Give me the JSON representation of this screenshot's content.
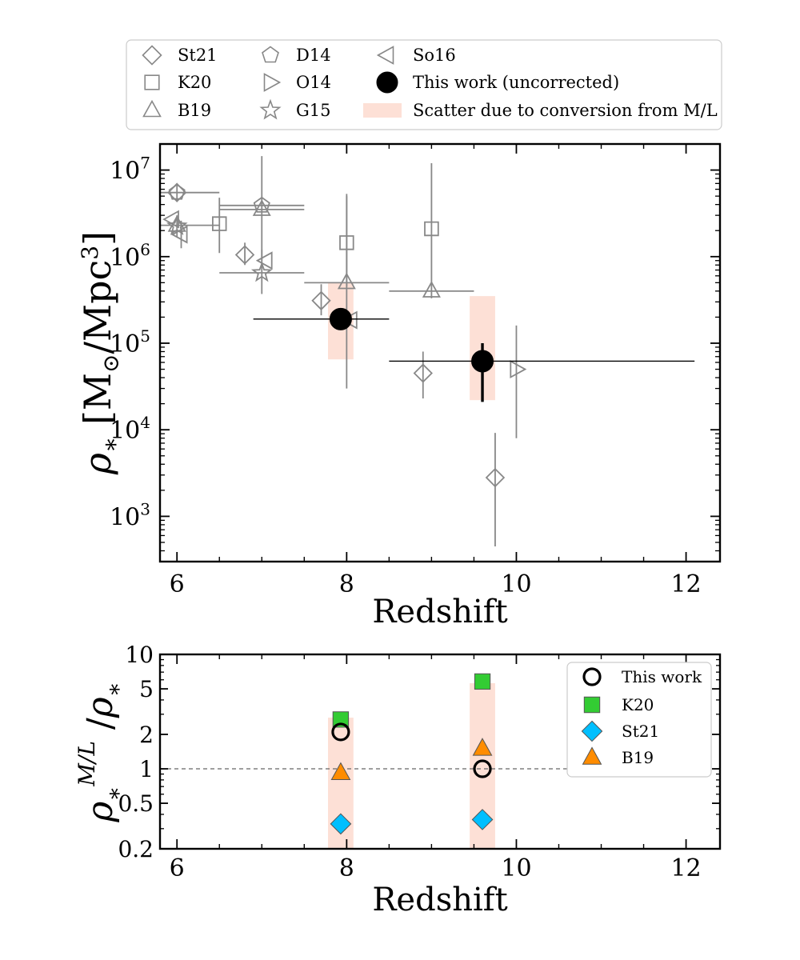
{
  "chart_data": [
    {
      "type": "scatter",
      "panel": "top",
      "xlabel": "Redshift",
      "ylabel": "ρ* [M⊙/Mpc³]",
      "yscale": "log",
      "xlim": [
        5.8,
        12.4
      ],
      "ylim": [
        300,
        20000000
      ],
      "xticks": [
        6,
        8,
        10,
        12
      ],
      "xtick_labels": [
        "6",
        "8",
        "10",
        "12"
      ],
      "yticks": [
        1000,
        10000,
        100000,
        1000000,
        10000000
      ],
      "ytick_labels": [
        {
          "base": "10",
          "exp": "3"
        },
        {
          "base": "10",
          "exp": "4"
        },
        {
          "base": "10",
          "exp": "5"
        },
        {
          "base": "10",
          "exp": "6"
        },
        {
          "base": "10",
          "exp": "7"
        }
      ],
      "legend_position": "above plot",
      "legend": [
        {
          "label": "St21",
          "marker": "diamond",
          "style": "open-gray"
        },
        {
          "label": "K20",
          "marker": "square",
          "style": "open-gray"
        },
        {
          "label": "B19",
          "marker": "triangle-up",
          "style": "open-gray"
        },
        {
          "label": "D14",
          "marker": "pentagon",
          "style": "open-gray"
        },
        {
          "label": "O14",
          "marker": "triangle-right",
          "style": "open-gray"
        },
        {
          "label": "G15",
          "marker": "star",
          "style": "open-gray"
        },
        {
          "label": "So16",
          "marker": "triangle-left",
          "style": "open-gray"
        },
        {
          "label": "This work (uncorrected)",
          "marker": "circle",
          "style": "filled-black"
        },
        {
          "label": "Scatter due to conversion from M/L",
          "marker": "band",
          "style": "salmon"
        }
      ],
      "series": [
        {
          "name": "St21",
          "marker": "diamond",
          "points": [
            {
              "x": 6.0,
              "y": 5500000,
              "ylo": 4300000,
              "yhi": 7000000
            },
            {
              "x": 6.8,
              "y": 1050000,
              "ylo": 800000,
              "yhi": 1450000
            },
            {
              "x": 7.7,
              "y": 310000,
              "ylo": 210000,
              "yhi": 480000
            },
            {
              "x": 8.9,
              "y": 45000,
              "ylo": 23000,
              "yhi": 80000
            },
            {
              "x": 9.75,
              "y": 2800,
              "ylo": 450,
              "yhi": 9200
            }
          ]
        },
        {
          "name": "K20",
          "marker": "square",
          "points": [
            {
              "x": 6.5,
              "y": 2400000,
              "ylo": 1100000,
              "yhi": 4800000
            },
            {
              "x": 8.0,
              "y": 1450000,
              "ylo": 450000,
              "yhi": 5000000
            },
            {
              "x": 9.0,
              "y": 2100000,
              "ylo": 330000,
              "yhi": 12000000
            }
          ]
        },
        {
          "name": "B19",
          "marker": "triangle-up",
          "points": [
            {
              "x": 6.0,
              "y": 2300000,
              "xlo": 5.8,
              "xhi": 6.5
            },
            {
              "x": 7.0,
              "y": 3500000,
              "xlo": 6.5,
              "xhi": 7.5,
              "ylo": 900000,
              "yhi": 14500000
            },
            {
              "x": 8.0,
              "y": 500000,
              "xlo": 7.5,
              "xhi": 8.5,
              "ylo": 30000,
              "yhi": 5300000
            },
            {
              "x": 9.0,
              "y": 400000,
              "xlo": 8.5,
              "xhi": 9.5
            }
          ]
        },
        {
          "name": "D14",
          "marker": "pentagon",
          "points": [
            {
              "x": 6.0,
              "y": 5500000,
              "xlo": 5.8,
              "xhi": 6.5
            },
            {
              "x": 7.0,
              "y": 3900000,
              "xlo": 6.5,
              "xhi": 7.5
            }
          ]
        },
        {
          "name": "O14",
          "marker": "triangle-right",
          "points": [
            {
              "x": 10.0,
              "y": 50000,
              "ylo": 8000,
              "yhi": 160000
            }
          ]
        },
        {
          "name": "G15",
          "marker": "star",
          "points": [
            {
              "x": 6.0,
              "y": 2250000,
              "ylo": 1700000,
              "yhi": 3000000
            },
            {
              "x": 7.0,
              "y": 650000,
              "xlo": 6.5,
              "xhi": 7.5,
              "ylo": 370000,
              "yhi": 1200000
            }
          ]
        },
        {
          "name": "So16",
          "marker": "triangle-left",
          "points": [
            {
              "x": 5.95,
              "y": 2700000
            },
            {
              "x": 6.05,
              "y": 1800000,
              "ylo": 1250000,
              "yhi": 2600000
            },
            {
              "x": 7.05,
              "y": 900000
            },
            {
              "x": 8.05,
              "y": 185000
            }
          ]
        },
        {
          "name": "This work (uncorrected)",
          "marker": "circle",
          "points": [
            {
              "x": 7.93,
              "y": 190000,
              "xlo": 6.9,
              "xhi": 8.5
            },
            {
              "x": 9.6,
              "y": 62000,
              "xlo": 8.5,
              "xhi": 12.1,
              "ylo": 21000,
              "yhi": 100000
            }
          ]
        }
      ],
      "bands": [
        {
          "name": "Scatter due to conversion from M/L",
          "xlo": 7.78,
          "xhi": 8.08,
          "ylo": 65000,
          "yhi": 500000
        },
        {
          "name": "Scatter due to conversion from M/L",
          "xlo": 9.45,
          "xhi": 9.75,
          "ylo": 22000,
          "yhi": 350000
        }
      ]
    },
    {
      "type": "scatter",
      "panel": "bottom",
      "xlabel": "Redshift",
      "ylabel": "ρ*^{M/L} / ρ*",
      "yscale": "log",
      "xlim": [
        5.8,
        12.4
      ],
      "ylim": [
        0.2,
        10
      ],
      "xticks": [
        6,
        8,
        10,
        12
      ],
      "xtick_labels": [
        "6",
        "8",
        "10",
        "12"
      ],
      "yticks": [
        0.2,
        0.5,
        1,
        2,
        5,
        10
      ],
      "ytick_labels": [
        "0.2",
        "0.5",
        "1",
        "2",
        "5",
        "10"
      ],
      "reference_line": 1,
      "legend_position": "top-right",
      "legend": [
        {
          "label": "This work",
          "marker": "circle-open",
          "color": "#000000"
        },
        {
          "label": "K20",
          "marker": "square",
          "color": "#33cc33"
        },
        {
          "label": "St21",
          "marker": "diamond",
          "color": "#00bfff"
        },
        {
          "label": "B19",
          "marker": "triangle-up",
          "color": "#ff8c00"
        }
      ],
      "series": [
        {
          "name": "This work",
          "marker": "circle-open",
          "x": [
            7.93,
            9.6
          ],
          "y": [
            2.1,
            1.0
          ]
        },
        {
          "name": "K20",
          "marker": "square",
          "x": [
            7.93,
            9.6
          ],
          "y": [
            2.7,
            5.8
          ]
        },
        {
          "name": "St21",
          "marker": "diamond",
          "x": [
            7.93,
            9.6
          ],
          "y": [
            0.33,
            0.36
          ]
        },
        {
          "name": "B19",
          "marker": "triangle-up",
          "x": [
            7.93,
            9.6
          ],
          "y": [
            0.92,
            1.5
          ]
        }
      ],
      "bands": [
        {
          "xlo": 7.78,
          "xhi": 8.08,
          "ylo": 0.2,
          "yhi": 2.8
        },
        {
          "xlo": 9.45,
          "xhi": 9.75,
          "ylo": 0.2,
          "yhi": 5.6
        }
      ]
    }
  ],
  "colors": {
    "literature": "#888888",
    "this_work": "#000000",
    "band": "#fde0d6",
    "k20_fill": "#33cc33",
    "st21_fill": "#00bfff",
    "b19_fill": "#ff8c00",
    "reference_line": "#666666"
  }
}
